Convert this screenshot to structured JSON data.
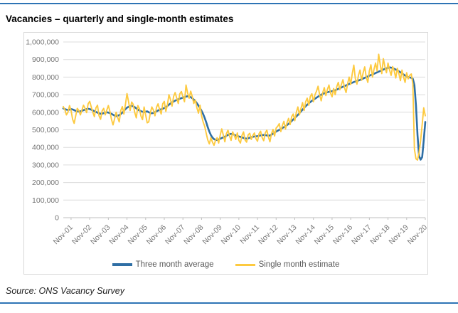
{
  "page": {
    "title": "Vacancies – quarterly and single-month estimates",
    "source": "Source: ONS Vacancy Survey"
  },
  "colors": {
    "accent_rule": "#2e74b5",
    "three_month_line": "#2f6fa5",
    "single_month_line": "#fdca40",
    "axis_text": "#767676",
    "legend_text": "#595959",
    "gridline": "#dcdcdc",
    "axis_line": "#bfbfbf",
    "chart_border": "#d9d9d9"
  },
  "chart_data": {
    "type": "line",
    "title": "Vacancies – quarterly and single-month estimates",
    "x_frequency": "monthly",
    "x_start": "Jun-2001",
    "x_end": "Nov-2020",
    "x_tick_labels": [
      "Nov-01",
      "Nov-02",
      "Nov-03",
      "Nov-04",
      "Nov-05",
      "Nov-06",
      "Nov-07",
      "Nov-08",
      "Nov-09",
      "Nov-10",
      "Nov-11",
      "Nov-12",
      "Nov-13",
      "Nov-14",
      "Nov-15",
      "Nov-16",
      "Nov-17",
      "Nov-18",
      "Nov-19",
      "Nov-20"
    ],
    "x_tick_first_index": 5,
    "x_tick_step": 12,
    "ylim": [
      0,
      1000000
    ],
    "y_tick_step": 100000,
    "y_tick_labels": [
      "0",
      "100,000",
      "200,000",
      "300,000",
      "400,000",
      "500,000",
      "600,000",
      "700,000",
      "800,000",
      "900,000",
      "1,000,000"
    ],
    "values_unit": "vacancies, stored in thousands",
    "grid": "horizontal",
    "legend_position": "bottom",
    "series": [
      {
        "name": "Three month average",
        "color": "#2f6fa5",
        "values": [
          622,
          618,
          615,
          613,
          615,
          618,
          616,
          612,
          608,
          605,
          604,
          605,
          608,
          612,
          615,
          618,
          620,
          618,
          615,
          610,
          606,
          602,
          598,
          594,
          591,
          592,
          595,
          598,
          600,
          598,
          595,
          591,
          586,
          581,
          578,
          580,
          584,
          590,
          598,
          608,
          618,
          626,
          631,
          634,
          636,
          634,
          629,
          622,
          615,
          610,
          606,
          603,
          601,
          603,
          605,
          600,
          596,
          594,
          596,
          600,
          605,
          610,
          614,
          617,
          620,
          624,
          629,
          636,
          643,
          650,
          656,
          661,
          666,
          670,
          674,
          677,
          680,
          683,
          686,
          689,
          691,
          690,
          686,
          680,
          672,
          663,
          651,
          638,
          624,
          608,
          590,
          568,
          543,
          515,
          490,
          470,
          456,
          447,
          443,
          442,
          445,
          449,
          453,
          457,
          461,
          466,
          471,
          475,
          477,
          476,
          472,
          468,
          465,
          462,
          460,
          457,
          454,
          451,
          450,
          452,
          455,
          458,
          460,
          462,
          463,
          464,
          466,
          468,
          470,
          471,
          470,
          468,
          466,
          468,
          472,
          478,
          484,
          490,
          495,
          500,
          505,
          510,
          515,
          521,
          527,
          534,
          542,
          550,
          559,
          568,
          576,
          585,
          595,
          605,
          615,
          625,
          634,
          643,
          651,
          658,
          665,
          671,
          677,
          683,
          689,
          695,
          700,
          704,
          708,
          711,
          714,
          716,
          718,
          720,
          722,
          725,
          729,
          733,
          737,
          741,
          745,
          749,
          753,
          757,
          761,
          765,
          768,
          772,
          775,
          778,
          781,
          784,
          788,
          792,
          796,
          800,
          804,
          808,
          812,
          815,
          819,
          823,
          827,
          831,
          835,
          839,
          843,
          847,
          850,
          853,
          855,
          854,
          851,
          847,
          843,
          838,
          833,
          827,
          821,
          815,
          809,
          803,
          800,
          798,
          796,
          790,
          755,
          640,
          470,
          350,
          330,
          345,
          440,
          545
        ]
      },
      {
        "name": "Single month estimate",
        "color": "#fdca40",
        "values": [
          632,
          615,
          585,
          600,
          638,
          610,
          560,
          537,
          580,
          622,
          610,
          585,
          612,
          640,
          622,
          598,
          648,
          662,
          630,
          600,
          575,
          625,
          640,
          580,
          560,
          608,
          622,
          585,
          612,
          638,
          605,
          560,
          528,
          562,
          600,
          570,
          545,
          610,
          632,
          590,
          645,
          706,
          660,
          610,
          658,
          645,
          598,
          568,
          638,
          620,
          578,
          558,
          630,
          585,
          540,
          545,
          595,
          630,
          612,
          580,
          628,
          648,
          615,
          590,
          648,
          662,
          605,
          640,
          700,
          672,
          635,
          690,
          712,
          680,
          650,
          705,
          718,
          688,
          660,
          755,
          710,
          680,
          720,
          690,
          650,
          670,
          625,
          595,
          640,
          580,
          545,
          520,
          480,
          442,
          420,
          455,
          430,
          412,
          440,
          455,
          425,
          470,
          505,
          470,
          432,
          478,
          498,
          465,
          440,
          488,
          470,
          445,
          482,
          440,
          425,
          468,
          488,
          442,
          430,
          472,
          480,
          445,
          468,
          482,
          450,
          435,
          478,
          492,
          455,
          438,
          482,
          498,
          460,
          432,
          478,
          502,
          465,
          510,
          520,
          535,
          490,
          525,
          548,
          505,
          540,
          565,
          530,
          575,
          590,
          552,
          600,
          630,
          585,
          622,
          655,
          610,
          660,
          680,
          640,
          690,
          705,
          660,
          700,
          720,
          748,
          700,
          665,
          712,
          740,
          695,
          730,
          755,
          710,
          688,
          735,
          700,
          745,
          770,
          728,
          758,
          785,
          740,
          712,
          762,
          800,
          758,
          820,
          868,
          790,
          760,
          810,
          840,
          782,
          825,
          858,
          800,
          770,
          835,
          870,
          800,
          845,
          880,
          835,
          930,
          870,
          820,
          905,
          860,
          825,
          880,
          840,
          810,
          860,
          835,
          795,
          850,
          820,
          780,
          840,
          800,
          770,
          825,
          790,
          810,
          818,
          760,
          390,
          335,
          328,
          370,
          440,
          530,
          625,
          580
        ]
      }
    ]
  }
}
